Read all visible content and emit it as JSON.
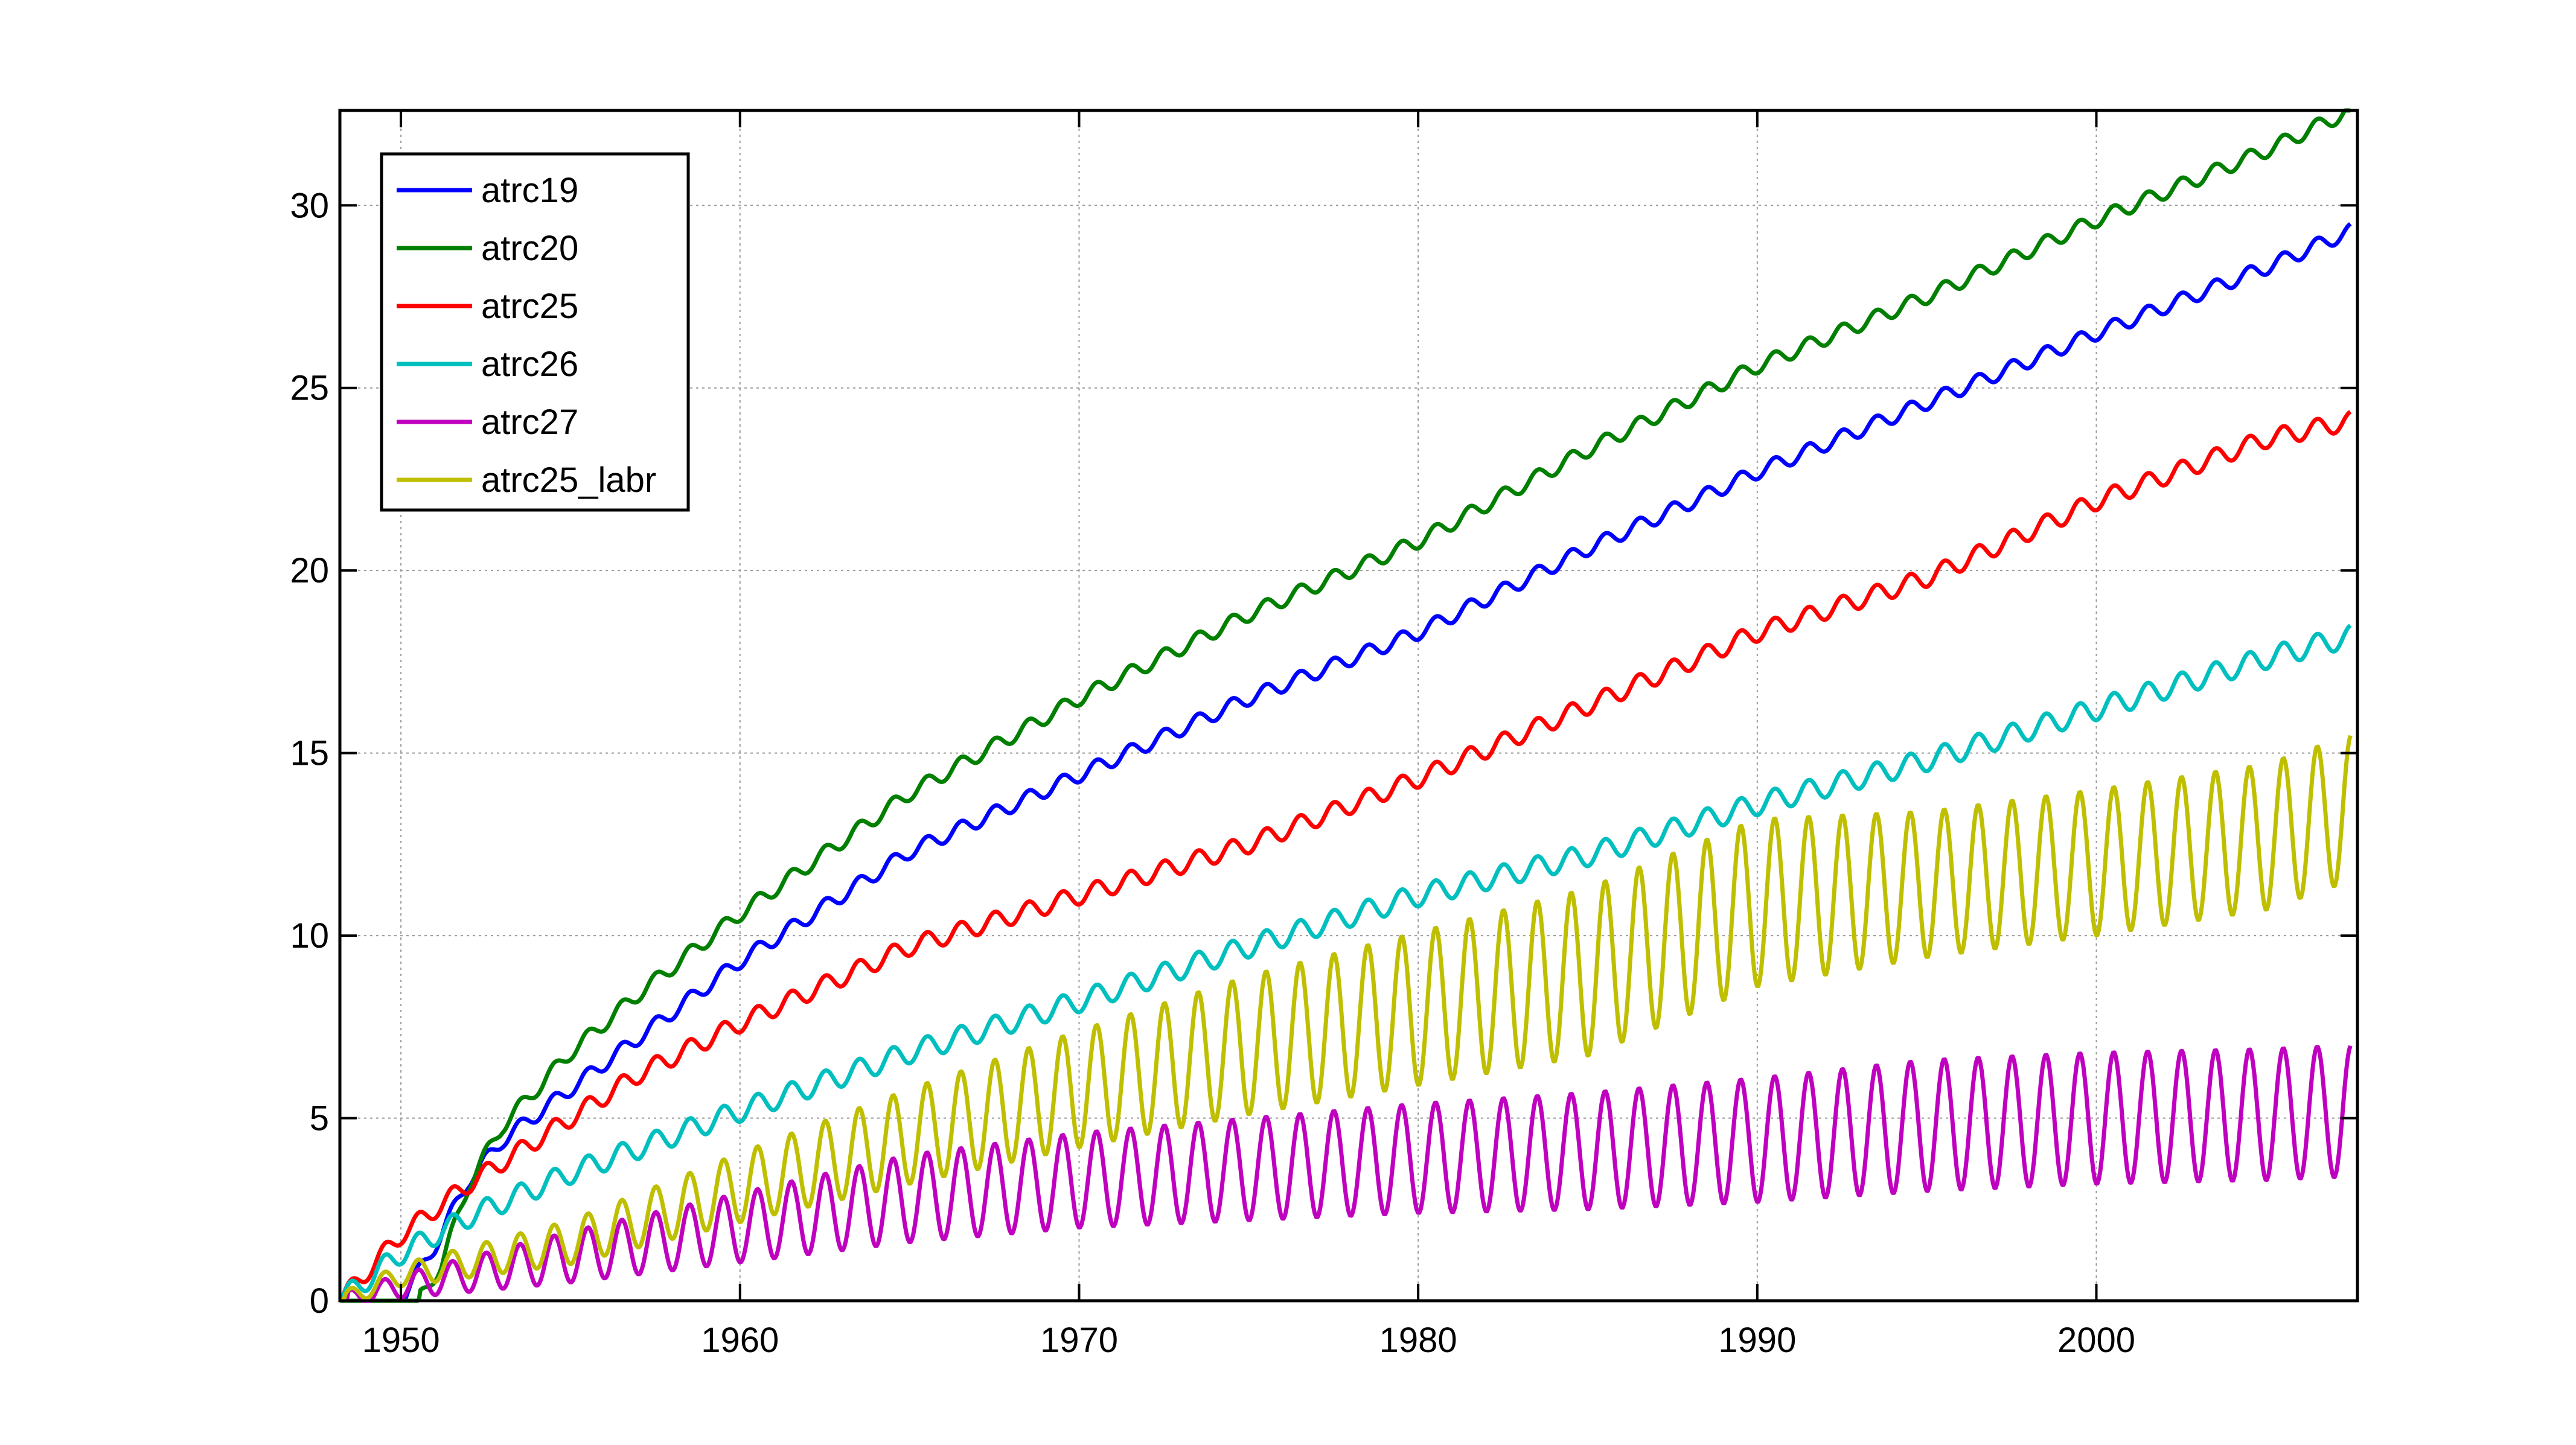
{
  "chart_data": {
    "type": "line",
    "title": "",
    "xlabel": "",
    "ylabel": "",
    "xlim": [
      1948.2,
      2007.7
    ],
    "ylim": [
      0,
      32.6
    ],
    "xticks": [
      1950,
      1960,
      1970,
      1980,
      1990,
      2000
    ],
    "yticks": [
      0,
      5,
      10,
      15,
      20,
      25,
      30
    ],
    "xtick_labels": [
      "1950",
      "1960",
      "1970",
      "1980",
      "1990",
      "2000"
    ],
    "ytick_labels": [
      "0",
      "5",
      "10",
      "15",
      "20",
      "25",
      "30"
    ],
    "grid": true,
    "legend_position": "top-left",
    "series": [
      {
        "name": "atrc19",
        "color": "#0000ff",
        "seasonal_amplitude": 0.2,
        "x": [
          1948.2,
          1950.0,
          1951.0,
          1952.0,
          1953.0,
          1955.0,
          1957.0,
          1960.0,
          1965.0,
          1970.0,
          1975.0,
          1980.0,
          1985.0,
          1990.0,
          1995.0,
          2000.0,
          2005.0,
          2007.5
        ],
        "y": [
          0,
          0,
          1.5,
          3.3,
          4.4,
          5.8,
          7.2,
          9.3,
          12.3,
          14.4,
          16.5,
          18.3,
          20.6,
          22.7,
          24.6,
          26.5,
          28.3,
          29.3
        ]
      },
      {
        "name": "atrc20",
        "color": "#007f00",
        "seasonal_amplitude": 0.2,
        "x": [
          1948.2,
          1950.5,
          1951.2,
          1952.0,
          1953.0,
          1955.0,
          1957.0,
          1960.0,
          1965.0,
          1970.0,
          1975.0,
          1980.0,
          1985.0,
          1990.0,
          1995.0,
          2000.0,
          2005.0,
          2007.5
        ],
        "y": [
          0,
          0,
          1.0,
          3.2,
          4.8,
          6.8,
          8.4,
          10.6,
          13.9,
          16.5,
          18.8,
          20.8,
          23.3,
          25.6,
          27.5,
          29.6,
          31.5,
          32.6
        ]
      },
      {
        "name": "atrc25",
        "color": "#ff0000",
        "seasonal_amplitude": 0.25,
        "x": [
          1948.2,
          1950.0,
          1952.0,
          1955.0,
          1957.0,
          1960.0,
          1965.0,
          1970.0,
          1975.0,
          1980.0,
          1985.0,
          1990.0,
          1995.0,
          2000.0,
          2005.0,
          2007.5
        ],
        "y": [
          0,
          1.8,
          3.2,
          5.0,
          6.2,
          7.6,
          9.7,
          11.1,
          12.5,
          14.3,
          16.3,
          18.3,
          19.8,
          21.9,
          23.6,
          24.1
        ]
      },
      {
        "name": "atrc26",
        "color": "#00bfbf",
        "seasonal_amplitude": 0.3,
        "x": [
          1948.2,
          1950.0,
          1952.0,
          1955.0,
          1960.0,
          1965.0,
          1970.0,
          1975.0,
          1980.0,
          1985.0,
          1990.0,
          1995.0,
          2000.0,
          2005.0,
          2007.5
        ],
        "y": [
          0,
          1.3,
          2.3,
          3.5,
          5.2,
          6.8,
          8.2,
          9.7,
          11.1,
          12.2,
          13.6,
          14.8,
          16.2,
          17.6,
          18.2
        ]
      },
      {
        "name": "atrc27",
        "color": "#bf00bf",
        "seasonal_amplitude_profile": {
          "x": [
            1948.2,
            1955.0,
            1965.0,
            1975.0,
            1985.0,
            1995.0,
            2007.5
          ],
          "amplitude": [
            0.2,
            0.7,
            1.2,
            1.4,
            1.6,
            1.8,
            1.8
          ]
        },
        "x": [
          1948.2,
          1950.0,
          1955.0,
          1960.0,
          1965.0,
          1970.0,
          1975.0,
          1980.0,
          1985.0,
          1990.0,
          1995.0,
          2000.0,
          2005.0,
          2007.5
        ],
        "y": [
          0,
          0.4,
          1.2,
          2.0,
          2.8,
          3.3,
          3.6,
          3.9,
          4.1,
          4.4,
          4.8,
          5.0,
          5.1,
          5.2
        ]
      },
      {
        "name": "atrc25_labr",
        "color": "#bfbf00",
        "seasonal_amplitude_profile": {
          "x": [
            1948.2,
            1955.0,
            1965.0,
            1975.0,
            1985.0,
            1990.0,
            1995.0,
            2007.5
          ],
          "amplitude": [
            0.2,
            0.6,
            1.3,
            1.9,
            2.3,
            2.3,
            2.0,
            2.0
          ]
        },
        "x": [
          1948.2,
          1950.0,
          1955.0,
          1960.0,
          1965.0,
          1970.0,
          1975.0,
          1980.0,
          1985.0,
          1990.0,
          1995.0,
          2000.0,
          2005.0,
          2007.5
        ],
        "y": [
          0,
          0.7,
          1.6,
          3.1,
          4.5,
          5.8,
          7.0,
          8.0,
          9.0,
          10.9,
          11.4,
          12.0,
          12.7,
          13.5
        ]
      }
    ]
  }
}
